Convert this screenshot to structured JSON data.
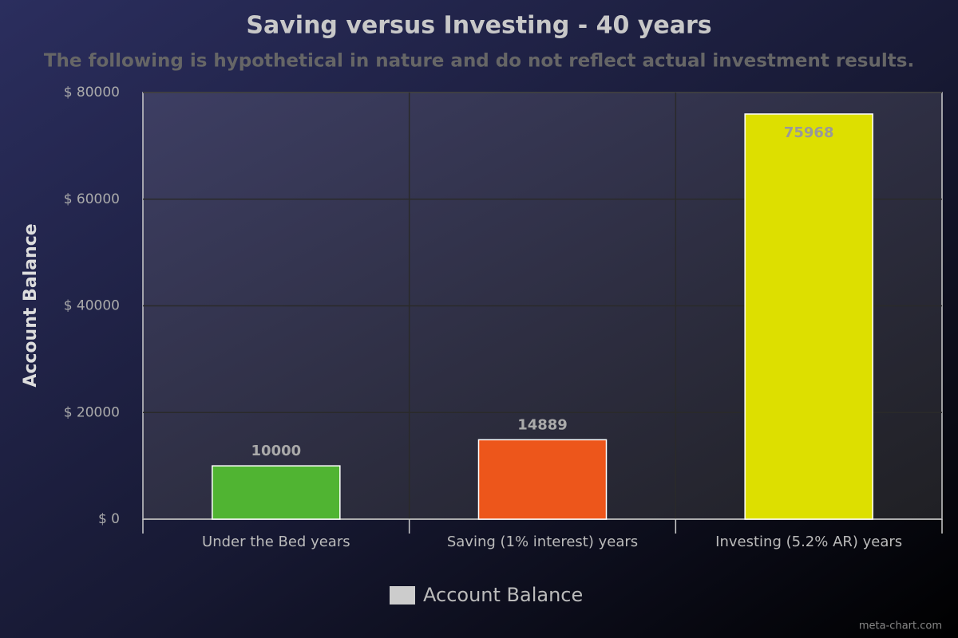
{
  "chart_data": {
    "type": "bar",
    "title": "Saving versus Investing - 40 years",
    "subtitle": "The following is hypothetical in nature and do not reflect actual investment results.",
    "y_label": "Account Balance",
    "credit": "meta-chart.com",
    "categories": [
      "Under the Bed years",
      "Saving (1% interest) years",
      "Investing (5.2% AR) years"
    ],
    "series": [
      {
        "name": "Account Balance",
        "legend_color": "#cccccc",
        "colors": [
          "#50b432",
          "#ed561b",
          "#dddf00"
        ],
        "values": [
          10000,
          14889,
          75968
        ]
      }
    ],
    "ylim": [
      0,
      80000
    ],
    "yticks": [
      {
        "value": 0,
        "label": "$ 0"
      },
      {
        "value": 20000,
        "label": "$ 20000"
      },
      {
        "value": 40000,
        "label": "$ 40000"
      },
      {
        "value": 60000,
        "label": "$ 60000"
      },
      {
        "value": 80000,
        "label": "$ 80000"
      }
    ],
    "grid": true
  }
}
